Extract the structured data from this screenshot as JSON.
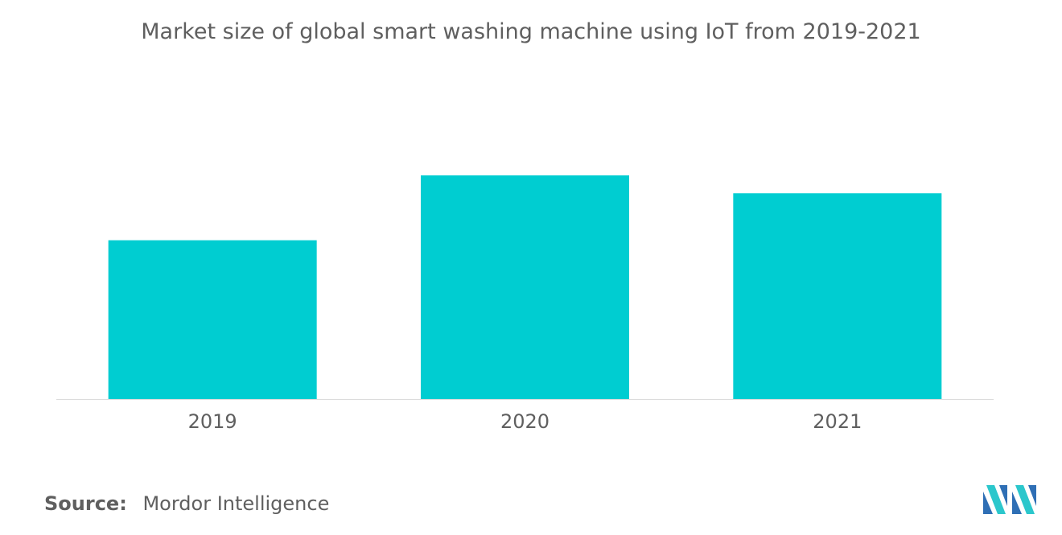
{
  "chart_data": {
    "type": "bar",
    "title": "Market size of global smart washing machine using IoT from 2019-2021",
    "categories": [
      "2019",
      "2020",
      "2021"
    ],
    "values": [
      71,
      100,
      92
    ],
    "xlabel": "",
    "ylabel": "",
    "ylim": [
      0,
      100
    ],
    "grid": false,
    "legend": "none",
    "bar_color": "#00cdd1",
    "axis_color": "#dcdcdc"
  },
  "source": {
    "label": "Source:",
    "value": "Mordor Intelligence"
  },
  "logo": {
    "icon": "mordor-intelligence-logo-icon",
    "colors": [
      "#2f6fb5",
      "#2cc7cc"
    ]
  }
}
